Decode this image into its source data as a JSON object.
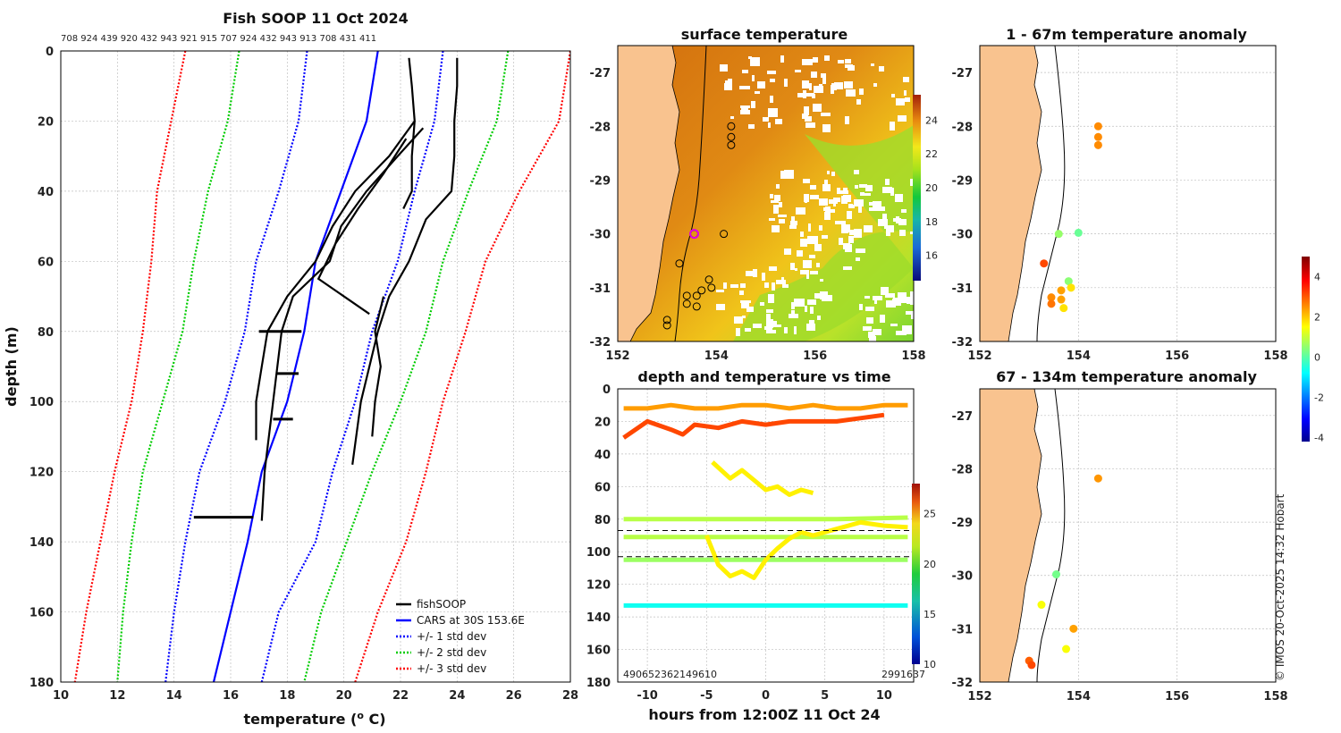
{
  "chart_data": [
    {
      "type": "line",
      "title": "Fish SOOP 11 Oct 2024",
      "top_labels": "708 924 439 920 432 943 921 915 707 924 432 943 913 708 431 411",
      "xlabel": "temperature (",
      "xlabel_sup": "o",
      "xlabel_end": " C)",
      "ylabel": "depth (m)",
      "xlim": [
        10,
        28
      ],
      "ylim": [
        0,
        180
      ],
      "xticks": [
        10,
        12,
        14,
        16,
        18,
        20,
        22,
        24,
        26,
        28
      ],
      "yticks": [
        0,
        20,
        40,
        60,
        80,
        100,
        120,
        140,
        160,
        180
      ],
      "legend": [
        {
          "label": "fishSOOP",
          "color": "#000000",
          "style": "solid"
        },
        {
          "label": "CARS at 30S 153.6E",
          "color": "#0000ff",
          "style": "solid"
        },
        {
          "label": "+/- 1 std dev",
          "color": "#0000ff",
          "style": "dotted"
        },
        {
          "label": "+/- 2 std dev",
          "color": "#00cc00",
          "style": "dotted"
        },
        {
          "label": "+/- 3 std dev",
          "color": "#ff0000",
          "style": "dotted"
        }
      ],
      "series": [
        {
          "name": "CARS at 30S 153.6E",
          "color": "#0000ff",
          "style": "solid",
          "depth": [
            0,
            20,
            40,
            60,
            80,
            100,
            120,
            140,
            160,
            180
          ],
          "temp": [
            21.2,
            20.8,
            19.9,
            19.0,
            18.6,
            18.0,
            17.1,
            16.6,
            16.0,
            15.4
          ]
        },
        {
          "name": "-1 std",
          "color": "#0000ff",
          "style": "dotted",
          "depth": [
            0,
            20,
            40,
            60,
            80,
            100,
            120,
            140,
            160,
            180
          ],
          "temp": [
            18.7,
            18.4,
            17.7,
            16.9,
            16.5,
            15.8,
            14.9,
            14.4,
            14.0,
            13.7
          ]
        },
        {
          "name": "+1 std",
          "color": "#0000ff",
          "style": "dotted",
          "depth": [
            0,
            20,
            40,
            60,
            80,
            100,
            120,
            140,
            160,
            180
          ],
          "temp": [
            23.5,
            23.2,
            22.5,
            21.9,
            21.0,
            20.4,
            19.6,
            19.0,
            17.7,
            17.1
          ]
        },
        {
          "name": "-2 std",
          "color": "#00cc00",
          "style": "dotted",
          "depth": [
            0,
            20,
            40,
            60,
            80,
            100,
            120,
            140,
            160,
            180
          ],
          "temp": [
            16.3,
            15.9,
            15.2,
            14.7,
            14.3,
            13.6,
            12.9,
            12.5,
            12.2,
            12.0
          ]
        },
        {
          "name": "+2 std",
          "color": "#00cc00",
          "style": "dotted",
          "depth": [
            0,
            20,
            40,
            60,
            80,
            100,
            120,
            140,
            160,
            180
          ],
          "temp": [
            25.8,
            25.4,
            24.4,
            23.5,
            22.9,
            22.0,
            21.0,
            20.1,
            19.2,
            18.6
          ]
        },
        {
          "name": "-3 std",
          "color": "#ff0000",
          "style": "dotted",
          "depth": [
            0,
            20,
            40,
            60,
            80,
            100,
            120,
            140,
            160,
            180
          ],
          "temp": [
            14.4,
            13.9,
            13.4,
            13.2,
            12.9,
            12.5,
            11.9,
            11.4,
            10.9,
            10.5
          ]
        },
        {
          "name": "+3 std",
          "color": "#ff0000",
          "style": "dotted",
          "depth": [
            0,
            20,
            40,
            60,
            80,
            100,
            120,
            140,
            160,
            180
          ],
          "temp": [
            28.0,
            27.6,
            26.2,
            25.0,
            24.3,
            23.5,
            22.9,
            22.2,
            21.2,
            20.4
          ]
        },
        {
          "name": "fishSOOP 1",
          "color": "#000000",
          "style": "solid",
          "depth": [
            20,
            30,
            40,
            50,
            60,
            70,
            80,
            90,
            100,
            111
          ],
          "temp": [
            22.5,
            21.6,
            20.4,
            19.6,
            19.0,
            18.0,
            17.3,
            17.1,
            16.9,
            16.9
          ]
        },
        {
          "name": "fishSOOP 2",
          "color": "#000000",
          "style": "solid",
          "depth": [
            22,
            30,
            40,
            50,
            60,
            70,
            80,
            100,
            120,
            134
          ],
          "temp": [
            22.8,
            21.9,
            20.8,
            19.9,
            19.5,
            18.2,
            17.8,
            17.5,
            17.2,
            17.1
          ]
        },
        {
          "name": "fishSOOP 3",
          "color": "#000000",
          "style": "solid",
          "depth": [
            25,
            35,
            45,
            55,
            65,
            75
          ],
          "temp": [
            22.2,
            21.4,
            20.5,
            19.7,
            19.1,
            20.9
          ]
        },
        {
          "name": "fishSOOP 4",
          "color": "#000000",
          "style": "solid",
          "depth": [
            2,
            10,
            20,
            30,
            40,
            45
          ],
          "temp": [
            22.3,
            22.4,
            22.5,
            22.4,
            22.4,
            22.1
          ]
        },
        {
          "name": "fishSOOP 5",
          "color": "#000000",
          "style": "solid",
          "depth": [
            2,
            10,
            20,
            30,
            40,
            48,
            60,
            70,
            80,
            100,
            118
          ],
          "temp": [
            24.0,
            24.0,
            23.9,
            23.9,
            23.8,
            22.9,
            22.3,
            21.6,
            21.2,
            20.6,
            20.3
          ]
        },
        {
          "name": "fishSOOP 6",
          "color": "#000000",
          "style": "solid",
          "depth": [
            70,
            80,
            90,
            100,
            110
          ],
          "temp": [
            21.4,
            21.1,
            21.3,
            21.1,
            21.0
          ]
        }
      ]
    },
    {
      "type": "heatmap",
      "title": "surface temperature",
      "xlim": [
        152,
        158
      ],
      "ylim": [
        -32,
        -26.5
      ],
      "xticks": [
        152,
        154,
        156,
        158
      ],
      "yticks": [
        -27,
        -28,
        -29,
        -30,
        -31,
        -32
      ],
      "colorbar_ticks": [
        16,
        18,
        20,
        22,
        24
      ],
      "colorbar_range": [
        14.5,
        25.5
      ],
      "stations": [
        {
          "lon": 154.3,
          "lat": -28.0
        },
        {
          "lon": 154.3,
          "lat": -28.2
        },
        {
          "lon": 154.3,
          "lat": -28.35
        },
        {
          "lon": 154.15,
          "lat": -30.0
        },
        {
          "lon": 153.25,
          "lat": -30.55
        },
        {
          "lon": 153.55,
          "lat": -30.0
        },
        {
          "lon": 153.85,
          "lat": -30.85
        },
        {
          "lon": 153.9,
          "lat": -31.0
        },
        {
          "lon": 153.7,
          "lat": -31.05
        },
        {
          "lon": 153.4,
          "lat": -31.15
        },
        {
          "lon": 153.6,
          "lat": -31.15
        },
        {
          "lon": 153.4,
          "lat": -31.3
        },
        {
          "lon": 153.6,
          "lat": -31.35
        },
        {
          "lon": 153.0,
          "lat": -31.6
        },
        {
          "lon": 153.0,
          "lat": -31.7
        }
      ],
      "highlight_station": {
        "lon": 153.55,
        "lat": -30.0
      }
    },
    {
      "type": "scatter",
      "title": "depth and temperature vs time",
      "xlabel": "hours from 12:00Z 11 Oct 24",
      "xlim": [
        -12.5,
        12.5
      ],
      "ylim": [
        0,
        180
      ],
      "xticks": [
        -10,
        -5,
        0,
        5,
        10
      ],
      "yticks": [
        0,
        20,
        40,
        60,
        80,
        100,
        120,
        140,
        160,
        180
      ],
      "colorbar_ticks": [
        10,
        15,
        20,
        25
      ],
      "colorbar_range": [
        10,
        28
      ],
      "reference_depths": [
        87,
        103
      ],
      "bottom_labels_left": "490652362149610",
      "bottom_labels_right": "2991637",
      "tracks": [
        {
          "t": [
            -12,
            -6,
            0,
            6,
            12
          ],
          "depth": [
            80,
            80,
            80,
            80,
            79
          ],
          "temp": [
            20,
            20,
            20,
            20,
            20
          ]
        },
        {
          "t": [
            -12,
            -6,
            0,
            6,
            12
          ],
          "depth": [
            91,
            91,
            91,
            91,
            91
          ],
          "temp": [
            20,
            20,
            20,
            20,
            20
          ]
        },
        {
          "t": [
            -12,
            -6,
            0,
            6,
            12
          ],
          "depth": [
            105,
            105,
            105,
            105,
            105
          ],
          "temp": [
            19.5,
            19.5,
            19.5,
            19.5,
            19.5
          ]
        },
        {
          "t": [
            -12,
            -6,
            0,
            6,
            12
          ],
          "depth": [
            133,
            133,
            133,
            133,
            133
          ],
          "temp": [
            17,
            17,
            17,
            17,
            17
          ]
        },
        {
          "t": [
            -12,
            -10,
            -8,
            -6,
            -4,
            -2,
            0,
            2,
            4,
            6,
            8,
            10,
            12
          ],
          "depth": [
            12,
            12,
            10,
            12,
            12,
            10,
            10,
            12,
            10,
            12,
            12,
            10,
            10
          ],
          "temp": [
            23,
            23,
            23.5,
            23.5,
            23,
            23,
            23,
            23,
            23,
            23.5,
            23,
            23,
            23
          ]
        },
        {
          "t": [
            -12,
            -10,
            -8,
            -7,
            -6,
            -4,
            -2,
            0,
            2,
            4,
            6,
            8,
            10
          ],
          "depth": [
            30,
            20,
            25,
            28,
            22,
            24,
            20,
            22,
            20,
            20,
            20,
            18,
            16
          ],
          "temp": [
            24.5,
            24.5,
            25,
            25,
            25,
            25,
            25,
            25,
            25,
            25,
            25,
            25,
            25
          ]
        },
        {
          "t": [
            -4.5,
            -3,
            -2,
            -1,
            0,
            1,
            2,
            3,
            4
          ],
          "depth": [
            45,
            55,
            50,
            56,
            62,
            60,
            65,
            62,
            64
          ],
          "temp": [
            21.5,
            21.5,
            21.5,
            21.5,
            21.5,
            21.5,
            21.5,
            21.5,
            21.5
          ]
        },
        {
          "t": [
            -5,
            -4,
            -3,
            -2,
            -1,
            0,
            1,
            2,
            3,
            4,
            6,
            8,
            10,
            12
          ],
          "depth": [
            90,
            108,
            115,
            112,
            116,
            105,
            98,
            92,
            88,
            90,
            86,
            82,
            84,
            85
          ],
          "temp": [
            21.5,
            21.5,
            21.5,
            21.5,
            21.5,
            21.8,
            21.8,
            21.8,
            21.8,
            21.8,
            21.8,
            21.8,
            21.8,
            21.8
          ]
        }
      ]
    },
    {
      "type": "scatter",
      "title": "1 - 67m temperature anomaly",
      "xlim": [
        152,
        158
      ],
      "ylim": [
        -32,
        -26.5
      ],
      "xticks": [
        152,
        154,
        156,
        158
      ],
      "yticks": [
        -27,
        -28,
        -29,
        -30,
        -31,
        -32
      ],
      "points": [
        {
          "lon": 154.4,
          "lat": -28.0,
          "anom": 2.6
        },
        {
          "lon": 154.4,
          "lat": -28.2,
          "anom": 2.6
        },
        {
          "lon": 154.4,
          "lat": -28.35,
          "anom": 2.6
        },
        {
          "lon": 153.6,
          "lat": -30.0,
          "anom": 0.6
        },
        {
          "lon": 154.0,
          "lat": -29.98,
          "anom": 0.2
        },
        {
          "lon": 153.3,
          "lat": -30.55,
          "anom": 3.2
        },
        {
          "lon": 153.8,
          "lat": -30.88,
          "anom": 0.5
        },
        {
          "lon": 153.85,
          "lat": -31.0,
          "anom": 1.8
        },
        {
          "lon": 153.65,
          "lat": -31.05,
          "anom": 2.4
        },
        {
          "lon": 153.45,
          "lat": -31.18,
          "anom": 2.6
        },
        {
          "lon": 153.65,
          "lat": -31.22,
          "anom": 2.4
        },
        {
          "lon": 153.45,
          "lat": -31.3,
          "anom": 2.8
        },
        {
          "lon": 153.7,
          "lat": -31.38,
          "anom": 1.8
        }
      ]
    },
    {
      "type": "scatter",
      "title": "67 - 134m temperature anomaly",
      "xlim": [
        152,
        158
      ],
      "ylim": [
        -32,
        -26.5
      ],
      "xticks": [
        152,
        154,
        156,
        158
      ],
      "yticks": [
        -27,
        -28,
        -29,
        -30,
        -31,
        -32
      ],
      "colorbar_ticks": [
        -4,
        -2,
        0,
        2,
        4
      ],
      "colorbar_range": [
        -4.2,
        5
      ],
      "points": [
        {
          "lon": 154.4,
          "lat": -28.18,
          "anom": 2.5
        },
        {
          "lon": 153.55,
          "lat": -29.98,
          "anom": 0.3
        },
        {
          "lon": 153.25,
          "lat": -30.55,
          "anom": 1.5
        },
        {
          "lon": 153.9,
          "lat": -31.0,
          "anom": 2.4
        },
        {
          "lon": 153.75,
          "lat": -31.38,
          "anom": 1.5
        },
        {
          "lon": 153.0,
          "lat": -31.6,
          "anom": 3.0
        },
        {
          "lon": 153.05,
          "lat": -31.68,
          "anom": 3.2
        }
      ]
    }
  ],
  "footer": "© IMOS 20-Oct-2025 14:32 Hobart"
}
